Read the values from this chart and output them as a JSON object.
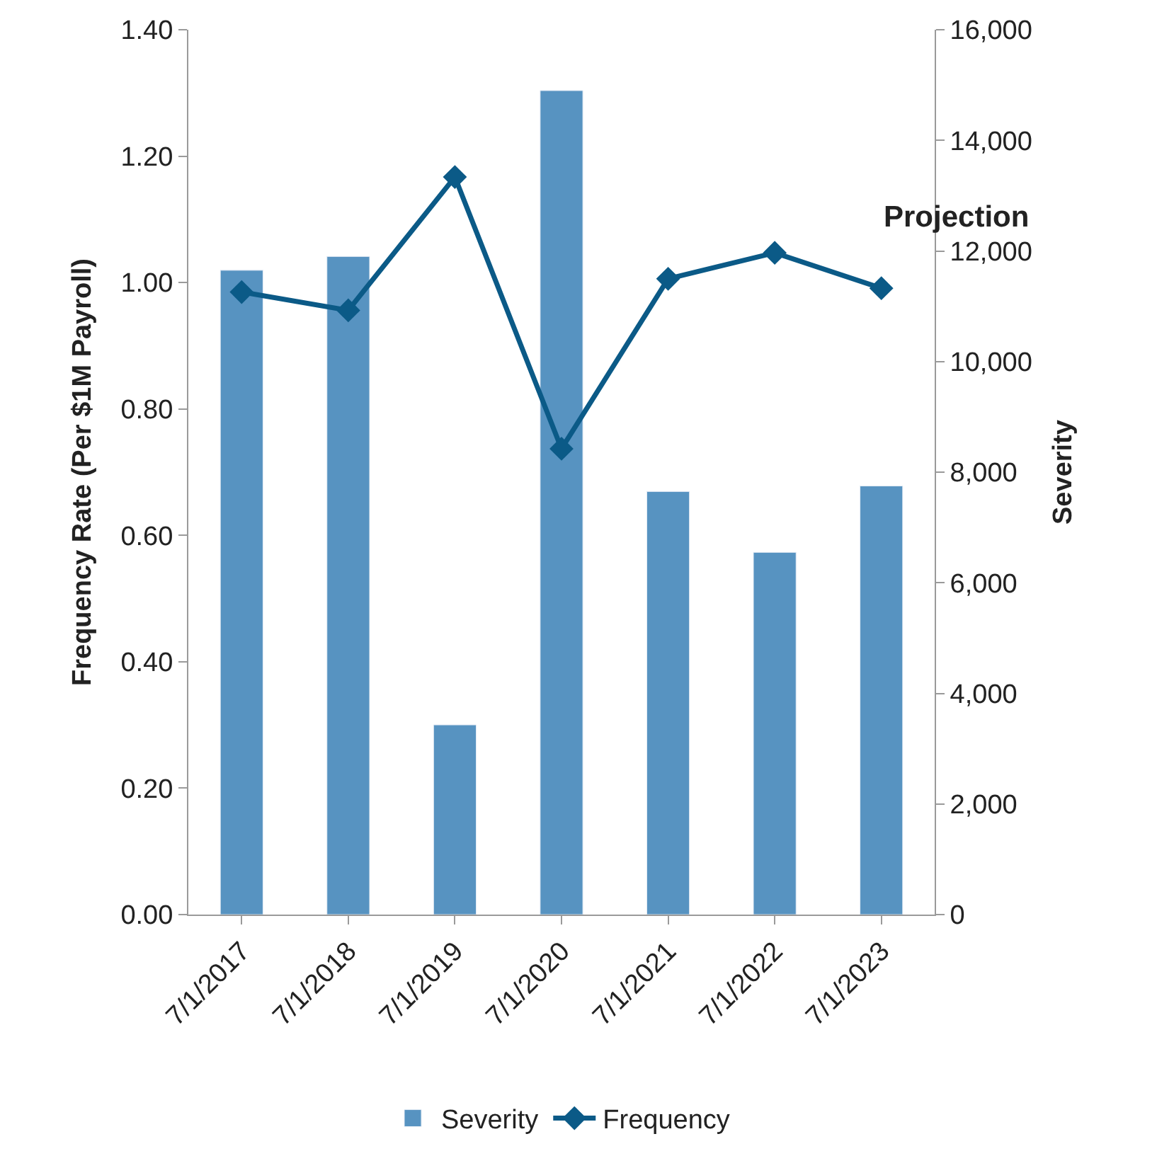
{
  "chart_data": {
    "type": "bar",
    "categories": [
      "7/1/2017",
      "7/1/2018",
      "7/1/2019",
      "7/1/2020",
      "7/1/2021",
      "7/1/2022",
      "7/1/2023"
    ],
    "series": [
      {
        "name": "Severity",
        "axis": "y2",
        "color": "#5793c1",
        "values": [
          11650,
          11900,
          3430,
          14900,
          7650,
          6550,
          7750
        ]
      },
      {
        "name": "Frequency",
        "type": "line",
        "axis": "y",
        "color": "#0b5a87",
        "marker": "diamond",
        "values": [
          0.985,
          0.956,
          1.167,
          0.737,
          1.006,
          1.047,
          0.991
        ]
      }
    ],
    "ylabel": "Frequency Rate (Per $1M Payroll)",
    "y2label": "Severity",
    "ylim": [
      0,
      1.4
    ],
    "yticks": [
      {
        "value": 0,
        "label": "0.00"
      },
      {
        "value": 0.2,
        "label": "0.20"
      },
      {
        "value": 0.4,
        "label": "0.40"
      },
      {
        "value": 0.6,
        "label": "0.60"
      },
      {
        "value": 0.8,
        "label": "0.80"
      },
      {
        "value": 1.0,
        "label": "1.00"
      },
      {
        "value": 1.2,
        "label": "1.20"
      },
      {
        "value": 1.4,
        "label": "1.40"
      }
    ],
    "y2lim": [
      0,
      16000
    ],
    "y2ticks": [
      0,
      {
        "value": 2000,
        "label": "2,000"
      },
      {
        "value": 4000,
        "label": "4,000"
      },
      {
        "value": 6000,
        "label": "6,000"
      },
      {
        "value": 8000,
        "label": "8,000"
      },
      {
        "value": 10000,
        "label": "10,000"
      },
      {
        "value": 12000,
        "label": "12,000"
      },
      {
        "value": 14000,
        "label": "14,000"
      },
      {
        "value": 16000,
        "label": "16,000"
      }
    ],
    "annotations": [
      "Projection"
    ],
    "legend": "bottom"
  }
}
